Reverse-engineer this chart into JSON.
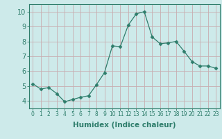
{
  "x": [
    0,
    1,
    2,
    3,
    4,
    5,
    6,
    7,
    8,
    9,
    10,
    11,
    12,
    13,
    14,
    15,
    16,
    17,
    18,
    19,
    20,
    21,
    22,
    23
  ],
  "y": [
    5.15,
    4.8,
    4.9,
    4.5,
    3.95,
    4.1,
    4.25,
    4.35,
    5.1,
    5.9,
    7.7,
    7.65,
    9.1,
    9.85,
    10.0,
    8.3,
    7.85,
    7.9,
    8.0,
    7.35,
    6.65,
    6.35,
    6.35,
    6.2
  ],
  "line_color": "#2e7d6b",
  "marker": "D",
  "marker_size": 2.5,
  "xlabel": "Humidex (Indice chaleur)",
  "ylim": [
    3.5,
    10.5
  ],
  "xlim": [
    -0.5,
    23.5
  ],
  "yticks": [
    4,
    5,
    6,
    7,
    8,
    9,
    10
  ],
  "xticks": [
    0,
    1,
    2,
    3,
    4,
    5,
    6,
    7,
    8,
    9,
    10,
    11,
    12,
    13,
    14,
    15,
    16,
    17,
    18,
    19,
    20,
    21,
    22,
    23
  ],
  "background_color": "#cdeaea",
  "grid_color": "#c8adb0",
  "tick_color": "#2e7d6b",
  "label_color": "#2e7d6b",
  "xlabel_fontsize": 7.5,
  "ytick_fontsize": 7,
  "xtick_fontsize": 5.5
}
